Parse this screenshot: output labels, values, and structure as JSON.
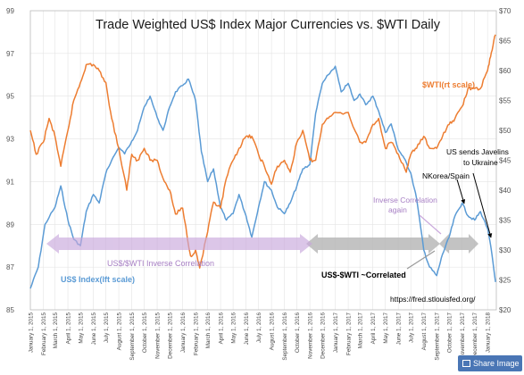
{
  "chart_data": {
    "type": "line",
    "title": "Trade Weighted US$ Index Major Currencies vs. $WTI Daily",
    "x_ticks": [
      "January 1, 2015",
      "February 1, 2015",
      "March 1, 2015",
      "April 1, 2015",
      "May 1, 2015",
      "June 1, 2015",
      "July 1, 2015",
      "August 1, 2015",
      "September 1, 2015",
      "October 1, 2015",
      "November 1, 2015",
      "December 1, 2015",
      "January 1, 2016",
      "February 1, 2016",
      "March 1, 2016",
      "April 1, 2016",
      "May 1, 2016",
      "June 1, 2016",
      "July 1, 2016",
      "August 1, 2016",
      "September 1, 2016",
      "October 1, 2016",
      "November 1, 2016",
      "December 1, 2016",
      "January 1, 2017",
      "February 1, 2017",
      "March 1, 2017",
      "April 1, 2017",
      "May 1, 2017",
      "June 1, 2017",
      "July 1, 2017",
      "August 1, 2017",
      "September 1, 2017",
      "October 1, 2017",
      "November 1, 2017",
      "December 1, 2017",
      "January 1, 2018"
    ],
    "y_left": {
      "label": "US$ Index(lft scale)",
      "ylim": [
        85,
        99
      ],
      "ticks": [
        85,
        87,
        89,
        91,
        93,
        95,
        97,
        99
      ]
    },
    "y_right": {
      "label": "$WTI(rt scale)",
      "ylim": [
        20,
        70
      ],
      "ticks": [
        "$20",
        "$25",
        "$30",
        "$35",
        "$40",
        "$45",
        "$50",
        "$55",
        "$60",
        "$65",
        "$70"
      ]
    },
    "series": [
      {
        "name": "US$ Index(lft scale)",
        "axis": "left",
        "color": "#5b9bd5",
        "x": [
          "2015-01-01",
          "2015-01-20",
          "2015-02-05",
          "2015-03-01",
          "2015-03-15",
          "2015-04-01",
          "2015-04-15",
          "2015-05-01",
          "2015-05-15",
          "2015-06-01",
          "2015-06-15",
          "2015-07-01",
          "2015-07-15",
          "2015-08-01",
          "2015-08-15",
          "2015-09-01",
          "2015-09-15",
          "2015-10-01",
          "2015-10-15",
          "2015-11-01",
          "2015-11-15",
          "2015-12-01",
          "2015-12-15",
          "2016-01-01",
          "2016-01-15",
          "2016-02-01",
          "2016-02-15",
          "2016-03-01",
          "2016-03-15",
          "2016-04-01",
          "2016-04-15",
          "2016-05-01",
          "2016-05-15",
          "2016-06-01",
          "2016-06-15",
          "2016-07-01",
          "2016-07-15",
          "2016-08-01",
          "2016-08-15",
          "2016-09-01",
          "2016-09-15",
          "2016-10-01",
          "2016-10-15",
          "2016-11-01",
          "2016-11-15",
          "2016-12-01",
          "2016-12-15",
          "2017-01-01",
          "2017-01-15",
          "2017-02-01",
          "2017-02-15",
          "2017-03-01",
          "2017-03-15",
          "2017-04-01",
          "2017-04-15",
          "2017-05-01",
          "2017-05-15",
          "2017-06-01",
          "2017-06-15",
          "2017-07-01",
          "2017-07-15",
          "2017-08-01",
          "2017-08-15",
          "2017-09-01",
          "2017-09-15",
          "2017-10-01",
          "2017-10-15",
          "2017-11-01",
          "2017-11-15",
          "2017-12-01",
          "2017-12-15",
          "2018-01-01",
          "2018-01-10",
          "2018-01-20"
        ],
        "values": [
          86.0,
          87.0,
          89.0,
          89.8,
          90.8,
          89.2,
          88.3,
          88.0,
          89.6,
          90.4,
          90.0,
          91.4,
          92.0,
          92.6,
          92.3,
          92.9,
          93.4,
          94.5,
          95.0,
          94.0,
          93.4,
          94.5,
          95.2,
          95.5,
          95.8,
          94.8,
          92.4,
          91.0,
          91.6,
          89.8,
          89.2,
          89.5,
          90.4,
          89.4,
          88.4,
          89.8,
          91.0,
          90.6,
          89.8,
          89.5,
          90.0,
          90.8,
          91.6,
          91.8,
          94.2,
          95.6,
          96.0,
          96.4,
          95.2,
          95.6,
          94.8,
          95.1,
          94.6,
          95.0,
          94.3,
          93.3,
          93.7,
          92.5,
          92.1,
          91.4,
          90.2,
          87.8,
          87.0,
          86.6,
          87.6,
          88.4,
          89.4,
          90.0,
          89.4,
          89.2,
          89.6,
          88.8,
          87.8,
          86.3
        ]
      },
      {
        "name": "$WTI(rt scale)",
        "axis": "right",
        "color": "#ed7d31",
        "x": [
          "2015-01-01",
          "2015-01-15",
          "2015-02-01",
          "2015-02-15",
          "2015-03-01",
          "2015-03-15",
          "2015-04-01",
          "2015-04-15",
          "2015-05-01",
          "2015-05-15",
          "2015-06-01",
          "2015-06-15",
          "2015-07-01",
          "2015-07-15",
          "2015-08-01",
          "2015-08-20",
          "2015-09-01",
          "2015-09-15",
          "2015-10-01",
          "2015-10-15",
          "2015-11-01",
          "2015-11-15",
          "2015-12-01",
          "2015-12-15",
          "2016-01-01",
          "2016-01-20",
          "2016-02-01",
          "2016-02-11",
          "2016-03-01",
          "2016-03-15",
          "2016-04-01",
          "2016-04-15",
          "2016-05-01",
          "2016-05-15",
          "2016-06-01",
          "2016-06-15",
          "2016-07-01",
          "2016-07-15",
          "2016-08-01",
          "2016-08-15",
          "2016-09-01",
          "2016-09-15",
          "2016-10-01",
          "2016-10-15",
          "2016-11-01",
          "2016-11-15",
          "2016-12-01",
          "2016-12-15",
          "2017-01-01",
          "2017-02-01",
          "2017-03-01",
          "2017-03-15",
          "2017-04-01",
          "2017-04-15",
          "2017-05-01",
          "2017-05-15",
          "2017-06-01",
          "2017-06-20",
          "2017-07-01",
          "2017-07-15",
          "2017-08-01",
          "2017-08-15",
          "2017-09-01",
          "2017-09-15",
          "2017-10-01",
          "2017-10-15",
          "2017-11-01",
          "2017-11-15",
          "2017-12-01",
          "2017-12-15",
          "2018-01-01",
          "2018-01-10",
          "2018-01-20"
        ],
        "values": [
          50,
          46,
          48,
          52,
          49,
          44,
          50,
          55,
          58,
          61,
          61,
          60,
          58,
          52,
          47,
          40,
          46,
          45,
          47,
          45,
          45,
          42,
          40,
          36,
          37,
          29,
          30,
          27,
          33,
          38,
          37,
          42,
          45,
          47,
          49,
          49,
          46,
          44,
          41,
          44,
          45,
          43,
          48,
          50,
          45,
          45,
          51,
          52,
          53,
          53,
          48,
          48,
          51,
          52,
          47,
          48,
          46,
          43,
          46,
          47,
          49,
          47,
          47,
          49,
          51,
          52,
          54,
          57,
          57,
          57,
          60,
          63,
          66
        ]
      }
    ],
    "annotations": [
      "US$/$WTI Inverse Correlation",
      "Inverse Correlation",
      "again",
      "US$-$WTI ~Correlated",
      "NKorea/Spain",
      "US sends Javelins",
      "to Ukraine",
      "https://fred.stlouisfed.org/"
    ],
    "grid": true,
    "legend": "none"
  },
  "ui": {
    "share_label": "Share Image"
  }
}
